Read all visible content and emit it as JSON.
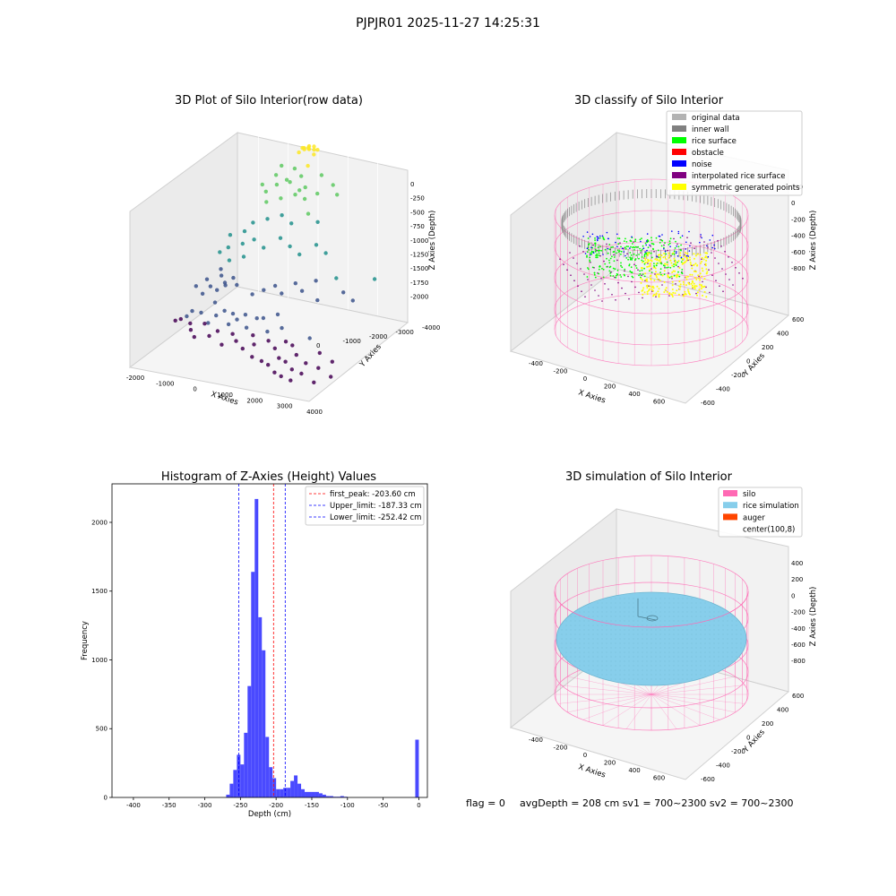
{
  "figure": {
    "suptitle": "PJPJR01 2025-11-27 14:25:31"
  },
  "chart_data": [
    {
      "type": "scatter",
      "title": "3D Plot of Silo Interior(row data)",
      "xlabel": "X Axies",
      "ylabel": "Y Axies",
      "zlabel": "Z Axies (Depth)",
      "x_ticks": [
        "-2000",
        "-1000",
        "0",
        "1000",
        "2000",
        "3000",
        "4000"
      ],
      "y_ticks": [
        "-4000",
        "-3000",
        "-2000",
        "-1000",
        "0"
      ],
      "z_ticks": [
        "0",
        "-250",
        "-500",
        "-750",
        "-1000",
        "-1250",
        "-1500",
        "-1750",
        "-2000"
      ],
      "xlim": [
        -2000,
        4000
      ],
      "ylim": [
        -4000,
        0
      ],
      "zlim": [
        -2000,
        0
      ],
      "colormap": [
        "#440154",
        "#3b528b",
        "#21918c",
        "#5ec962",
        "#fde725"
      ],
      "points": [
        [
          -1800,
          -2400,
          -1800
        ],
        [
          -1700,
          -2300,
          -1800
        ],
        [
          -1500,
          -2300,
          -1750
        ],
        [
          -1400,
          -2200,
          -1700
        ],
        [
          -1300,
          -2400,
          -1800
        ],
        [
          -1200,
          -2500,
          -1850
        ],
        [
          -1100,
          -2200,
          -1700
        ],
        [
          -1000,
          -2600,
          -1900
        ],
        [
          -900,
          -2300,
          -1800
        ],
        [
          -800,
          -2000,
          -1600
        ],
        [
          -700,
          -2400,
          -1750
        ],
        [
          -600,
          -2200,
          -1700
        ],
        [
          -500,
          -2600,
          -1850
        ],
        [
          -400,
          -2100,
          -1650
        ],
        [
          -300,
          -2500,
          -1800
        ],
        [
          -200,
          -2000,
          -1700
        ],
        [
          -100,
          -2300,
          -1750
        ],
        [
          0,
          -2700,
          -1900
        ],
        [
          100,
          -2200,
          -1700
        ],
        [
          200,
          -2500,
          -1800
        ],
        [
          300,
          -2100,
          -1650
        ],
        [
          400,
          -2600,
          -1850
        ],
        [
          500,
          -2300,
          -1750
        ],
        [
          600,
          -2000,
          -1700
        ],
        [
          700,
          -2700,
          -1900
        ],
        [
          800,
          -2400,
          -1800
        ],
        [
          900,
          -2100,
          -1650
        ],
        [
          1000,
          -2600,
          -1850
        ],
        [
          1100,
          -2800,
          -1950
        ],
        [
          1200,
          -2300,
          -1750
        ],
        [
          1300,
          -2000,
          -1600
        ],
        [
          1400,
          -2500,
          -1800
        ],
        [
          1500,
          -2900,
          -1950
        ],
        [
          1600,
          -2200,
          -1700
        ],
        [
          1700,
          -2600,
          -1850
        ],
        [
          1800,
          -3000,
          -1950
        ],
        [
          1900,
          -2400,
          -1800
        ],
        [
          2000,
          -2800,
          -1900
        ],
        [
          2100,
          -3100,
          -2000
        ],
        [
          2200,
          -2500,
          -1800
        ],
        [
          2300,
          -2900,
          -1900
        ],
        [
          2400,
          -3200,
          -2000
        ],
        [
          2500,
          -2700,
          -1850
        ],
        [
          2600,
          -3000,
          -1950
        ],
        [
          2700,
          -2400,
          -1700
        ],
        [
          2800,
          -3300,
          -2000
        ],
        [
          2900,
          -2800,
          -1900
        ],
        [
          3000,
          -3100,
          -1950
        ],
        [
          3200,
          -2600,
          -1800
        ],
        [
          3400,
          -2900,
          -1900
        ],
        [
          3500,
          -3200,
          -2000
        ],
        [
          3700,
          -2700,
          -1850
        ],
        [
          3900,
          -3000,
          -1950
        ],
        [
          -1600,
          -1800,
          -1500
        ],
        [
          -1400,
          -1600,
          -1450
        ],
        [
          -1200,
          -1700,
          -1500
        ],
        [
          -1000,
          -1500,
          -1400
        ],
        [
          -800,
          -1600,
          -1450
        ],
        [
          -1300,
          -1900,
          -1550
        ],
        [
          -900,
          -1800,
          -1500
        ],
        [
          -600,
          -1500,
          -1400
        ],
        [
          -1100,
          -1400,
          -1350
        ],
        [
          -700,
          -1700,
          -1450
        ],
        [
          -400,
          -1600,
          -1450
        ],
        [
          200,
          -1700,
          -1500
        ],
        [
          500,
          -1600,
          -1450
        ],
        [
          800,
          -1500,
          -1400
        ],
        [
          1100,
          -1600,
          -1450
        ],
        [
          1400,
          -1400,
          -1350
        ],
        [
          1700,
          -1500,
          -1400
        ],
        [
          2000,
          -1300,
          -1300
        ],
        [
          2300,
          -1600,
          -1450
        ],
        [
          2600,
          -1200,
          -1250
        ],
        [
          3000,
          -1400,
          -1350
        ],
        [
          3400,
          -1500,
          -1400
        ],
        [
          3800,
          -1100,
          -1200
        ],
        [
          -1300,
          -1200,
          -1200
        ],
        [
          -1100,
          -1100,
          -1150
        ],
        [
          -900,
          -1300,
          -1250
        ],
        [
          -700,
          -1000,
          -1100
        ],
        [
          -500,
          -1200,
          -1200
        ],
        [
          -1200,
          -900,
          -1050
        ],
        [
          -800,
          -800,
          -1000
        ],
        [
          -400,
          -900,
          -1050
        ],
        [
          0,
          -1000,
          -1100
        ],
        [
          400,
          -800,
          -1000
        ],
        [
          800,
          -900,
          -1050
        ],
        [
          1200,
          -1000,
          -1100
        ],
        [
          1600,
          -800,
          -1000
        ],
        [
          2000,
          -900,
          -1050
        ],
        [
          -600,
          -700,
          -900
        ],
        [
          -200,
          -600,
          -850
        ],
        [
          200,
          -500,
          -800
        ],
        [
          600,
          -600,
          -850
        ],
        [
          1000,
          -400,
          -750
        ],
        [
          1400,
          -500,
          -800
        ],
        [
          -400,
          -400,
          -700
        ],
        [
          0,
          -300,
          -650
        ],
        [
          400,
          -200,
          -600
        ],
        [
          -300,
          -100,
          -550
        ],
        [
          100,
          -50,
          -500
        ],
        [
          500,
          -150,
          -550
        ],
        [
          -500,
          -300,
          -600
        ],
        [
          -700,
          -200,
          -550
        ],
        [
          800,
          -300,
          -600
        ],
        [
          1100,
          -150,
          -550
        ],
        [
          1500,
          0,
          -450
        ],
        [
          1800,
          -200,
          -500
        ],
        [
          -200,
          -250,
          -380
        ],
        [
          200,
          -300,
          -400
        ],
        [
          600,
          -200,
          -350
        ],
        [
          900,
          -400,
          -420
        ],
        [
          300,
          -100,
          -300
        ],
        [
          700,
          -50,
          -250
        ],
        [
          -100,
          -150,
          -280
        ],
        [
          1200,
          -100,
          -320
        ],
        [
          400,
          -50,
          -100
        ],
        [
          500,
          50,
          -80
        ],
        [
          600,
          100,
          -60
        ],
        [
          700,
          0,
          -50
        ],
        [
          800,
          80,
          -70
        ],
        [
          900,
          -50,
          -90
        ],
        [
          550,
          -20,
          -40
        ],
        [
          650,
          60,
          -30
        ],
        [
          750,
          -80,
          -20
        ],
        [
          850,
          20,
          -10
        ],
        [
          450,
          30,
          -60
        ],
        [
          950,
          40,
          -50
        ]
      ]
    },
    {
      "type": "scatter",
      "title": "3D classify of Silo Interior",
      "xlabel": "X Axies",
      "ylabel": "Y Axies",
      "zlabel": "Z Axies (Depth)",
      "x_ticks": [
        "-400",
        "-200",
        "0",
        "200",
        "400",
        "600"
      ],
      "y_ticks": [
        "-600",
        "-400",
        "-200",
        "0",
        "200",
        "400",
        "600"
      ],
      "z_ticks": [
        "200",
        "0",
        "-200",
        "-400",
        "-600",
        "-800"
      ],
      "legend_position": "top-right",
      "legend": [
        {
          "label": "original data",
          "color": "#b3b3b3"
        },
        {
          "label": "inner wall",
          "color": "#808080"
        },
        {
          "label": "rice surface",
          "color": "#00ff00"
        },
        {
          "label": "obstacle",
          "color": "#ff0000"
        },
        {
          "label": "noise",
          "color": "#0000ff"
        },
        {
          "label": "interpolated rice surface",
          "color": "#800080"
        },
        {
          "label": "symmetric generated points",
          "color": "#ffff00"
        }
      ],
      "silo_wire_color": "#ff69b4"
    },
    {
      "type": "bar",
      "title": "Histogram of Z-Axies (Height) Values",
      "xlabel": "Depth (cm)",
      "ylabel": "Frequency",
      "xlim": [
        -430,
        12
      ],
      "ylim": [
        0,
        2280
      ],
      "x_ticks": [
        -400,
        -350,
        -300,
        -250,
        -200,
        -150,
        -100,
        -50,
        0
      ],
      "y_ticks": [
        0,
        500,
        1000,
        1500,
        2000
      ],
      "bar_color": "#4a4aff",
      "bins": [
        [
          -270,
          20
        ],
        [
          -265,
          100
        ],
        [
          -260,
          200
        ],
        [
          -255,
          310
        ],
        [
          -250,
          240
        ],
        [
          -245,
          470
        ],
        [
          -240,
          810
        ],
        [
          -235,
          1640
        ],
        [
          -230,
          2170
        ],
        [
          -225,
          1310
        ],
        [
          -220,
          1070
        ],
        [
          -215,
          440
        ],
        [
          -210,
          220
        ],
        [
          -205,
          140
        ],
        [
          -200,
          60
        ],
        [
          -195,
          60
        ],
        [
          -190,
          70
        ],
        [
          -185,
          70
        ],
        [
          -180,
          120
        ],
        [
          -175,
          160
        ],
        [
          -170,
          100
        ],
        [
          -165,
          60
        ],
        [
          -160,
          40
        ],
        [
          -155,
          40
        ],
        [
          -150,
          40
        ],
        [
          -145,
          40
        ],
        [
          -140,
          30
        ],
        [
          -135,
          20
        ],
        [
          -130,
          10
        ],
        [
          -125,
          10
        ],
        [
          -120,
          5
        ],
        [
          -115,
          5
        ],
        [
          -110,
          10
        ],
        [
          -105,
          5
        ],
        [
          -5,
          420
        ]
      ],
      "vlines": [
        {
          "label": "first_peak: -203.60 cm",
          "x": -203.6,
          "color": "#ff0000"
        },
        {
          "label": "Upper_limit: -187.33 cm",
          "x": -187.33,
          "color": "#0000ff"
        },
        {
          "label": "Lower_limit: -252.42 cm",
          "x": -252.42,
          "color": "#0000ff"
        }
      ],
      "legend_position": "top-right"
    },
    {
      "type": "scatter",
      "title": "3D simulation of Silo Interior",
      "xlabel": "X Axies",
      "ylabel": "Y Axies",
      "zlabel": "Z Axies (Depth)",
      "x_ticks": [
        "-400",
        "-200",
        "0",
        "200",
        "400",
        "600"
      ],
      "y_ticks": [
        "-600",
        "-400",
        "-200",
        "0",
        "200",
        "400",
        "600"
      ],
      "z_ticks": [
        "400",
        "200",
        "0",
        "-200",
        "-400",
        "-600",
        "-800"
      ],
      "legend_position": "top-right",
      "legend": [
        {
          "label": "silo",
          "color": "#ff69b4"
        },
        {
          "label": "rice simulation",
          "color": "#87ceeb"
        },
        {
          "label": "auger",
          "color": "#ff4500"
        },
        {
          "label": "center(100,8)",
          "color": "#ffffff"
        }
      ]
    }
  ],
  "footer": {
    "flag": "flag = 0",
    "avg": "avgDepth = 208 cm  sv1 = 700~2300  sv2 = 700~2300"
  }
}
